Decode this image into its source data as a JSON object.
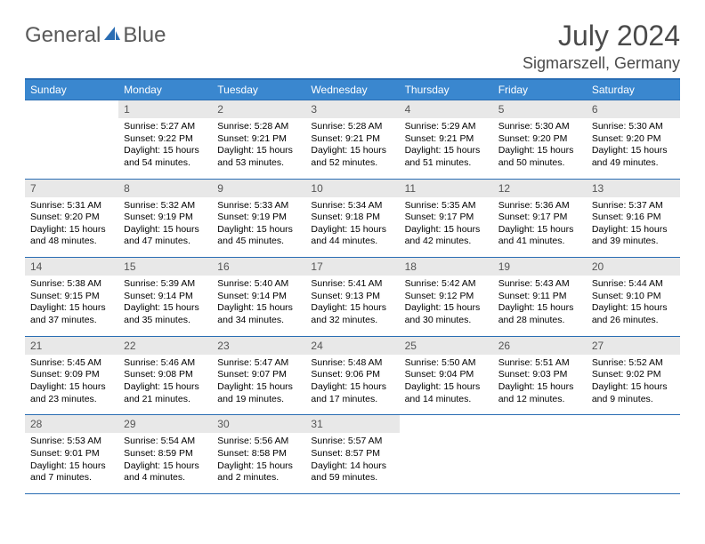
{
  "logo": {
    "word1": "General",
    "word2": "Blue",
    "accent_color": "#2a6db3",
    "text_color": "#5a5a5a"
  },
  "title": "July 2024",
  "location": "Sigmarszell, Germany",
  "colors": {
    "header_bg": "#3a87cf",
    "header_text": "#ffffff",
    "rule": "#2a6db3",
    "daynum_bg": "#e8e8e8",
    "daynum_text": "#555555",
    "body_text": "#000000",
    "page_bg": "#ffffff"
  },
  "day_headers": [
    "Sunday",
    "Monday",
    "Tuesday",
    "Wednesday",
    "Thursday",
    "Friday",
    "Saturday"
  ],
  "weeks": [
    [
      {
        "empty": true
      },
      {
        "n": "1",
        "sunrise": "5:27 AM",
        "sunset": "9:22 PM",
        "daylight": "15 hours and 54 minutes."
      },
      {
        "n": "2",
        "sunrise": "5:28 AM",
        "sunset": "9:21 PM",
        "daylight": "15 hours and 53 minutes."
      },
      {
        "n": "3",
        "sunrise": "5:28 AM",
        "sunset": "9:21 PM",
        "daylight": "15 hours and 52 minutes."
      },
      {
        "n": "4",
        "sunrise": "5:29 AM",
        "sunset": "9:21 PM",
        "daylight": "15 hours and 51 minutes."
      },
      {
        "n": "5",
        "sunrise": "5:30 AM",
        "sunset": "9:20 PM",
        "daylight": "15 hours and 50 minutes."
      },
      {
        "n": "6",
        "sunrise": "5:30 AM",
        "sunset": "9:20 PM",
        "daylight": "15 hours and 49 minutes."
      }
    ],
    [
      {
        "n": "7",
        "sunrise": "5:31 AM",
        "sunset": "9:20 PM",
        "daylight": "15 hours and 48 minutes."
      },
      {
        "n": "8",
        "sunrise": "5:32 AM",
        "sunset": "9:19 PM",
        "daylight": "15 hours and 47 minutes."
      },
      {
        "n": "9",
        "sunrise": "5:33 AM",
        "sunset": "9:19 PM",
        "daylight": "15 hours and 45 minutes."
      },
      {
        "n": "10",
        "sunrise": "5:34 AM",
        "sunset": "9:18 PM",
        "daylight": "15 hours and 44 minutes."
      },
      {
        "n": "11",
        "sunrise": "5:35 AM",
        "sunset": "9:17 PM",
        "daylight": "15 hours and 42 minutes."
      },
      {
        "n": "12",
        "sunrise": "5:36 AM",
        "sunset": "9:17 PM",
        "daylight": "15 hours and 41 minutes."
      },
      {
        "n": "13",
        "sunrise": "5:37 AM",
        "sunset": "9:16 PM",
        "daylight": "15 hours and 39 minutes."
      }
    ],
    [
      {
        "n": "14",
        "sunrise": "5:38 AM",
        "sunset": "9:15 PM",
        "daylight": "15 hours and 37 minutes."
      },
      {
        "n": "15",
        "sunrise": "5:39 AM",
        "sunset": "9:14 PM",
        "daylight": "15 hours and 35 minutes."
      },
      {
        "n": "16",
        "sunrise": "5:40 AM",
        "sunset": "9:14 PM",
        "daylight": "15 hours and 34 minutes."
      },
      {
        "n": "17",
        "sunrise": "5:41 AM",
        "sunset": "9:13 PM",
        "daylight": "15 hours and 32 minutes."
      },
      {
        "n": "18",
        "sunrise": "5:42 AM",
        "sunset": "9:12 PM",
        "daylight": "15 hours and 30 minutes."
      },
      {
        "n": "19",
        "sunrise": "5:43 AM",
        "sunset": "9:11 PM",
        "daylight": "15 hours and 28 minutes."
      },
      {
        "n": "20",
        "sunrise": "5:44 AM",
        "sunset": "9:10 PM",
        "daylight": "15 hours and 26 minutes."
      }
    ],
    [
      {
        "n": "21",
        "sunrise": "5:45 AM",
        "sunset": "9:09 PM",
        "daylight": "15 hours and 23 minutes."
      },
      {
        "n": "22",
        "sunrise": "5:46 AM",
        "sunset": "9:08 PM",
        "daylight": "15 hours and 21 minutes."
      },
      {
        "n": "23",
        "sunrise": "5:47 AM",
        "sunset": "9:07 PM",
        "daylight": "15 hours and 19 minutes."
      },
      {
        "n": "24",
        "sunrise": "5:48 AM",
        "sunset": "9:06 PM",
        "daylight": "15 hours and 17 minutes."
      },
      {
        "n": "25",
        "sunrise": "5:50 AM",
        "sunset": "9:04 PM",
        "daylight": "15 hours and 14 minutes."
      },
      {
        "n": "26",
        "sunrise": "5:51 AM",
        "sunset": "9:03 PM",
        "daylight": "15 hours and 12 minutes."
      },
      {
        "n": "27",
        "sunrise": "5:52 AM",
        "sunset": "9:02 PM",
        "daylight": "15 hours and 9 minutes."
      }
    ],
    [
      {
        "n": "28",
        "sunrise": "5:53 AM",
        "sunset": "9:01 PM",
        "daylight": "15 hours and 7 minutes."
      },
      {
        "n": "29",
        "sunrise": "5:54 AM",
        "sunset": "8:59 PM",
        "daylight": "15 hours and 4 minutes."
      },
      {
        "n": "30",
        "sunrise": "5:56 AM",
        "sunset": "8:58 PM",
        "daylight": "15 hours and 2 minutes."
      },
      {
        "n": "31",
        "sunrise": "5:57 AM",
        "sunset": "8:57 PM",
        "daylight": "14 hours and 59 minutes."
      },
      {
        "empty": true
      },
      {
        "empty": true
      },
      {
        "empty": true
      }
    ]
  ],
  "labels": {
    "sunrise": "Sunrise: ",
    "sunset": "Sunset: ",
    "daylight": "Daylight: "
  }
}
